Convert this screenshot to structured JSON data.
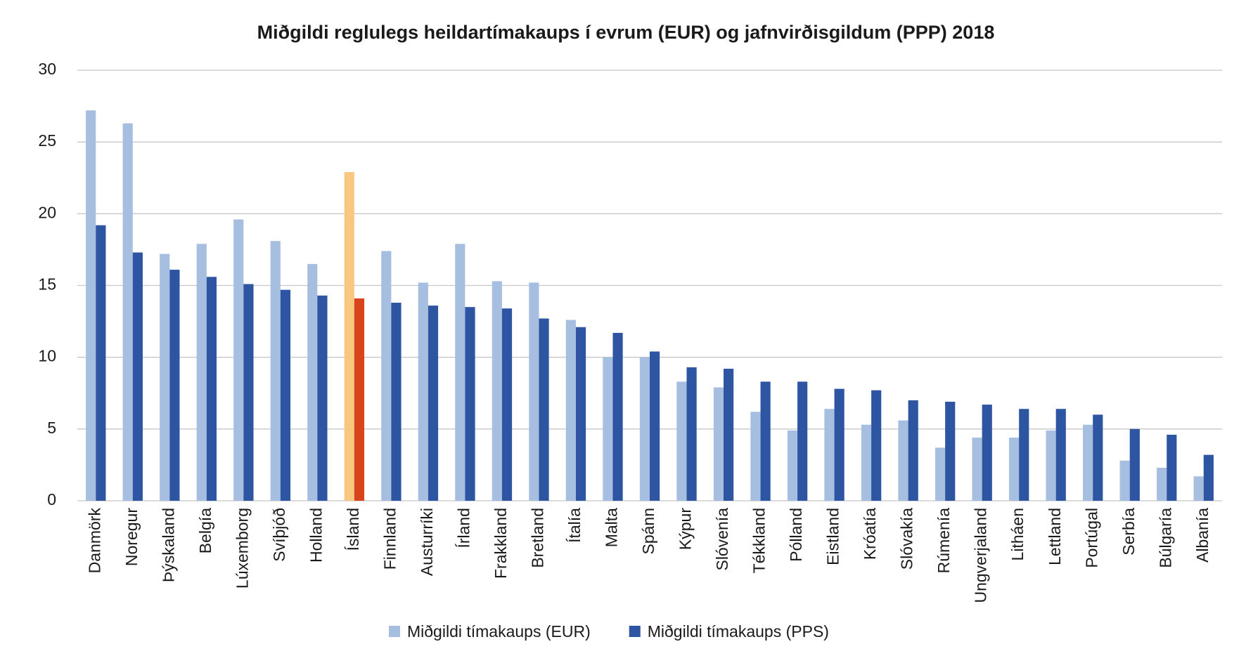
{
  "chart_data": {
    "type": "bar",
    "title": "Miðgildi reglulegs heildartímakaups í evrum (EUR) og jafnvirðisgildum (PPP) 2018",
    "categories": [
      "Danmörk",
      "Noregur",
      "Þýskaland",
      "Belgía",
      "Lúxemborg",
      "Svíþjóð",
      "Holland",
      "Ísland",
      "Finnland",
      "Austurríki",
      "Írland",
      "Frakkland",
      "Bretland",
      "Ítalía",
      "Malta",
      "Spánn",
      "Kýpur",
      "Slóvenía",
      "Tékkland",
      "Pólland",
      "Eistland",
      "Króatía",
      "Slóvakía",
      "Rúmenía",
      "Ungverjaland",
      "Litháen",
      "Lettland",
      "Portúgal",
      "Serbía",
      "Búlgaría",
      "Albanía"
    ],
    "series": [
      {
        "name": "Miðgildi tímakaups (EUR)",
        "color": "#a6bee0",
        "colors": [
          "#a6bee0",
          "#a6bee0",
          "#a6bee0",
          "#a6bee0",
          "#a6bee0",
          "#a6bee0",
          "#a6bee0",
          "#f9c77f",
          "#a6bee0",
          "#a6bee0",
          "#a6bee0",
          "#a6bee0",
          "#a6bee0",
          "#a6bee0",
          "#a6bee0",
          "#a6bee0",
          "#a6bee0",
          "#a6bee0",
          "#a6bee0",
          "#a6bee0",
          "#a6bee0",
          "#a6bee0",
          "#a6bee0",
          "#a6bee0",
          "#a6bee0",
          "#a6bee0",
          "#a6bee0",
          "#a6bee0",
          "#a6bee0",
          "#a6bee0",
          "#a6bee0"
        ],
        "values": [
          27.2,
          26.3,
          17.2,
          17.9,
          19.6,
          18.1,
          16.5,
          22.9,
          17.4,
          15.2,
          17.9,
          15.3,
          15.2,
          12.6,
          10.0,
          10.0,
          8.3,
          7.9,
          6.2,
          4.9,
          6.4,
          5.3,
          5.6,
          3.7,
          4.4,
          4.4,
          4.9,
          5.3,
          2.8,
          2.3,
          1.7
        ]
      },
      {
        "name": "Miðgildi tímakaups (PPS)",
        "color": "#2e55a2",
        "colors": [
          "#2e55a2",
          "#2e55a2",
          "#2e55a2",
          "#2e55a2",
          "#2e55a2",
          "#2e55a2",
          "#2e55a2",
          "#d8441b",
          "#2e55a2",
          "#2e55a2",
          "#2e55a2",
          "#2e55a2",
          "#2e55a2",
          "#2e55a2",
          "#2e55a2",
          "#2e55a2",
          "#2e55a2",
          "#2e55a2",
          "#2e55a2",
          "#2e55a2",
          "#2e55a2",
          "#2e55a2",
          "#2e55a2",
          "#2e55a2",
          "#2e55a2",
          "#2e55a2",
          "#2e55a2",
          "#2e55a2",
          "#2e55a2",
          "#2e55a2",
          "#2e55a2"
        ],
        "values": [
          19.2,
          17.3,
          16.1,
          15.6,
          15.1,
          14.7,
          14.3,
          14.1,
          13.8,
          13.6,
          13.5,
          13.4,
          12.7,
          12.1,
          11.7,
          10.4,
          9.3,
          9.2,
          8.3,
          8.3,
          7.8,
          7.7,
          7.0,
          6.9,
          6.7,
          6.4,
          6.4,
          6.0,
          5.0,
          4.6,
          3.2
        ]
      }
    ],
    "ylim": [
      0,
      30
    ],
    "yticks": [
      0,
      5,
      10,
      15,
      20,
      25,
      30
    ],
    "grid": true,
    "legend": "bottom"
  }
}
